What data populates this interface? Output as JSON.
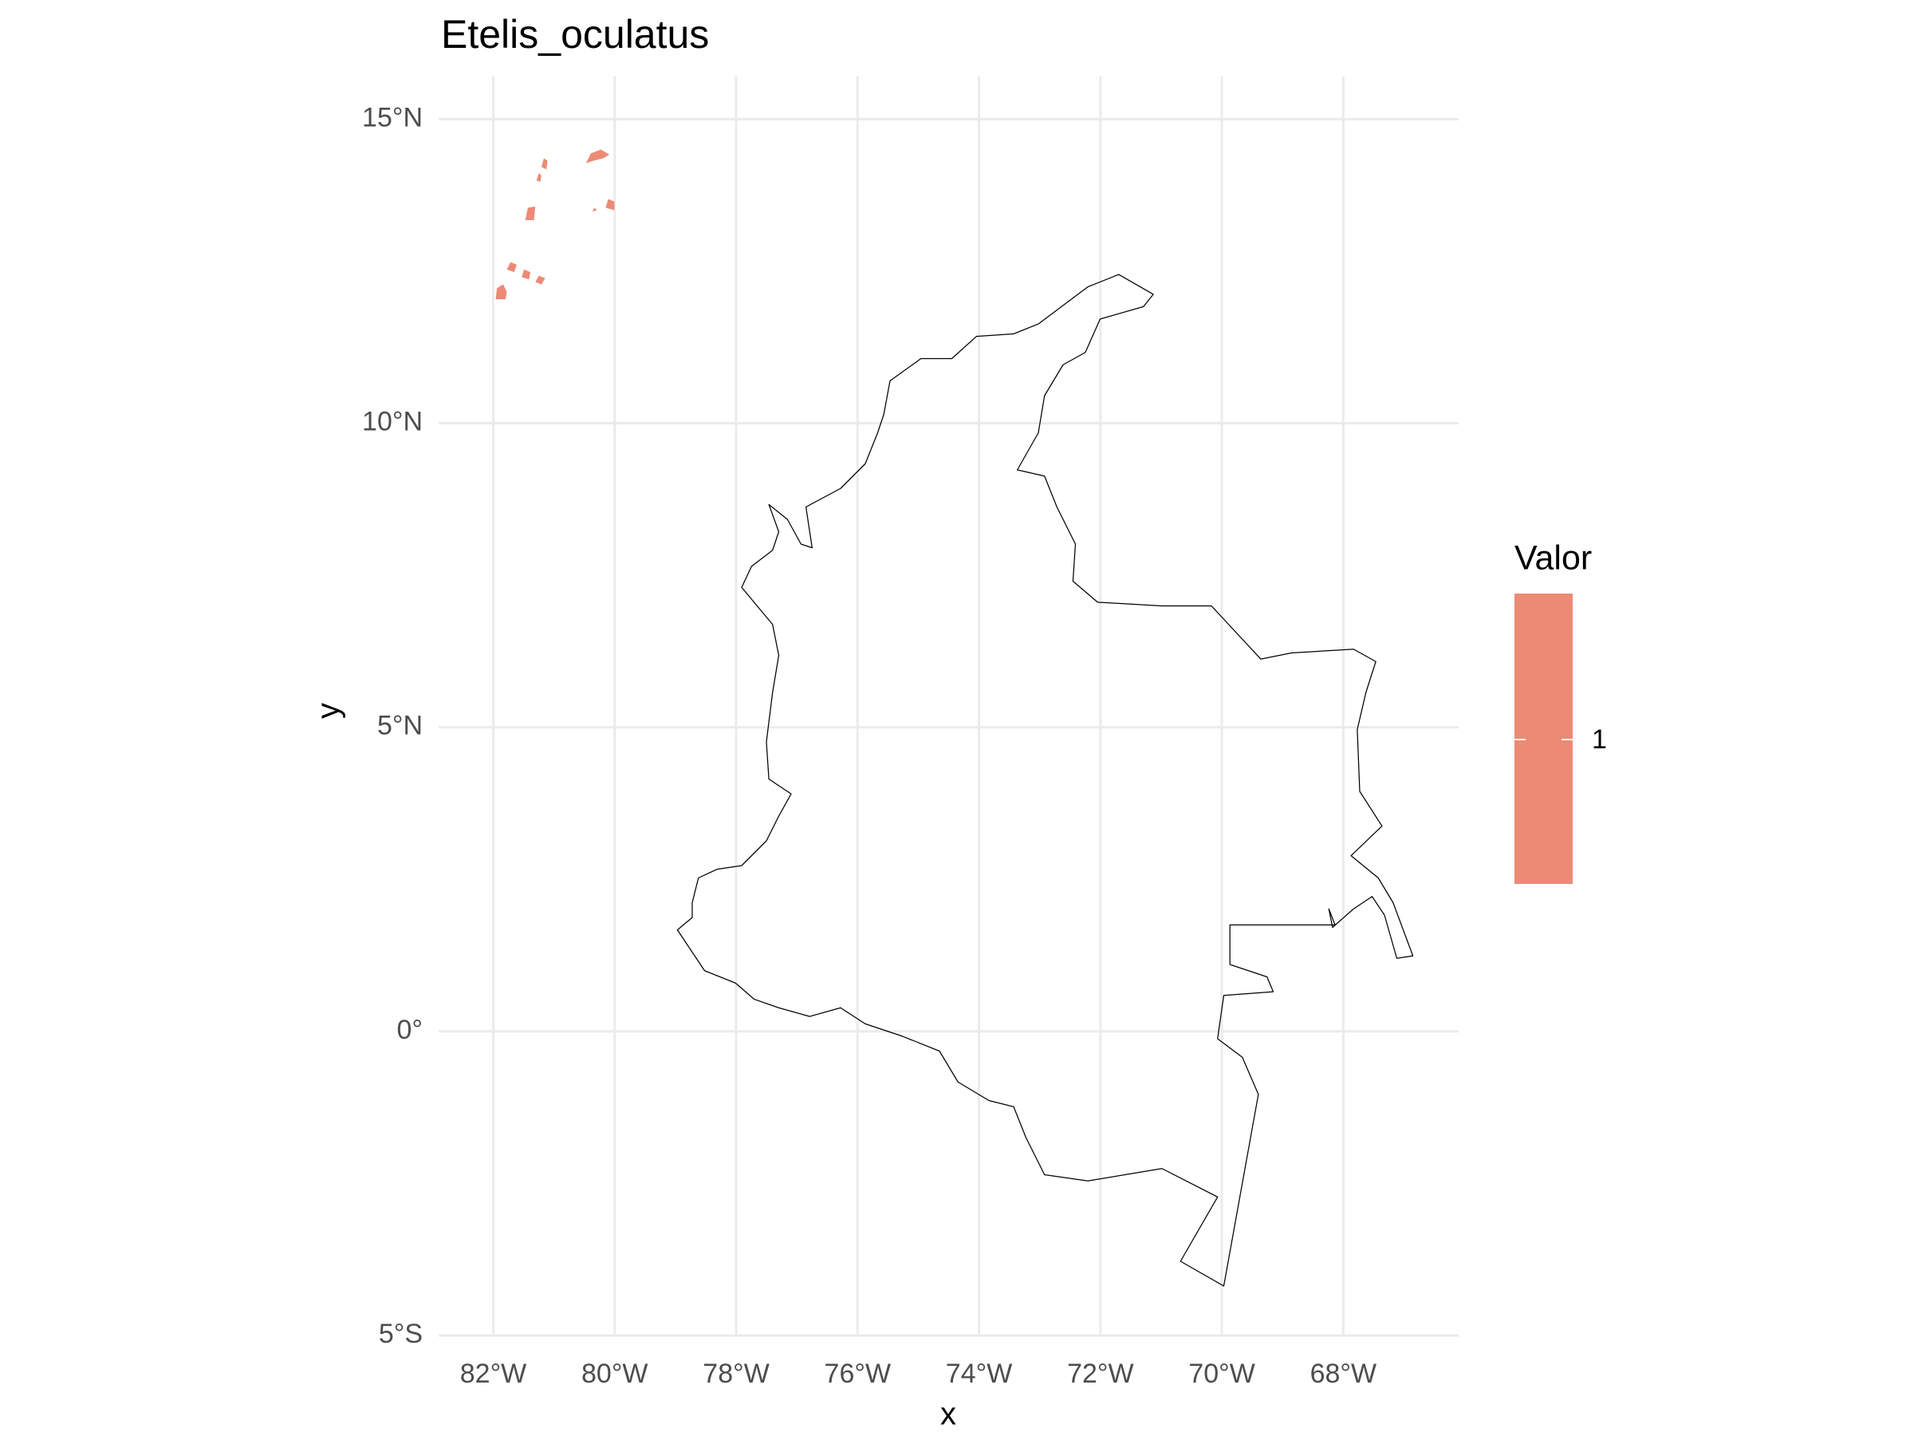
{
  "chart_data": {
    "type": "map",
    "title": "Etelis_oculatus",
    "x_label": "x",
    "y_label": "y",
    "xlim": [
      -82.9,
      -66.1
    ],
    "ylim": [
      -5,
      15.7
    ],
    "xticks": [
      {
        "value": -82,
        "label": "82°W"
      },
      {
        "value": -80,
        "label": "80°W"
      },
      {
        "value": -78,
        "label": "78°W"
      },
      {
        "value": -76,
        "label": "76°W"
      },
      {
        "value": -74,
        "label": "74°W"
      },
      {
        "value": -72,
        "label": "72°W"
      },
      {
        "value": -70,
        "label": "70°W"
      },
      {
        "value": -68,
        "label": "68°W"
      }
    ],
    "yticks": [
      {
        "value": -5,
        "label": "5°S"
      },
      {
        "value": 0,
        "label": "0°"
      },
      {
        "value": 5,
        "label": "5°N"
      },
      {
        "value": 10,
        "label": "10°N"
      },
      {
        "value": 15,
        "label": "15°N"
      }
    ],
    "grid": true,
    "legend": {
      "title": "Valor",
      "values": [
        1
      ],
      "color": "#ec8a76"
    }
  }
}
